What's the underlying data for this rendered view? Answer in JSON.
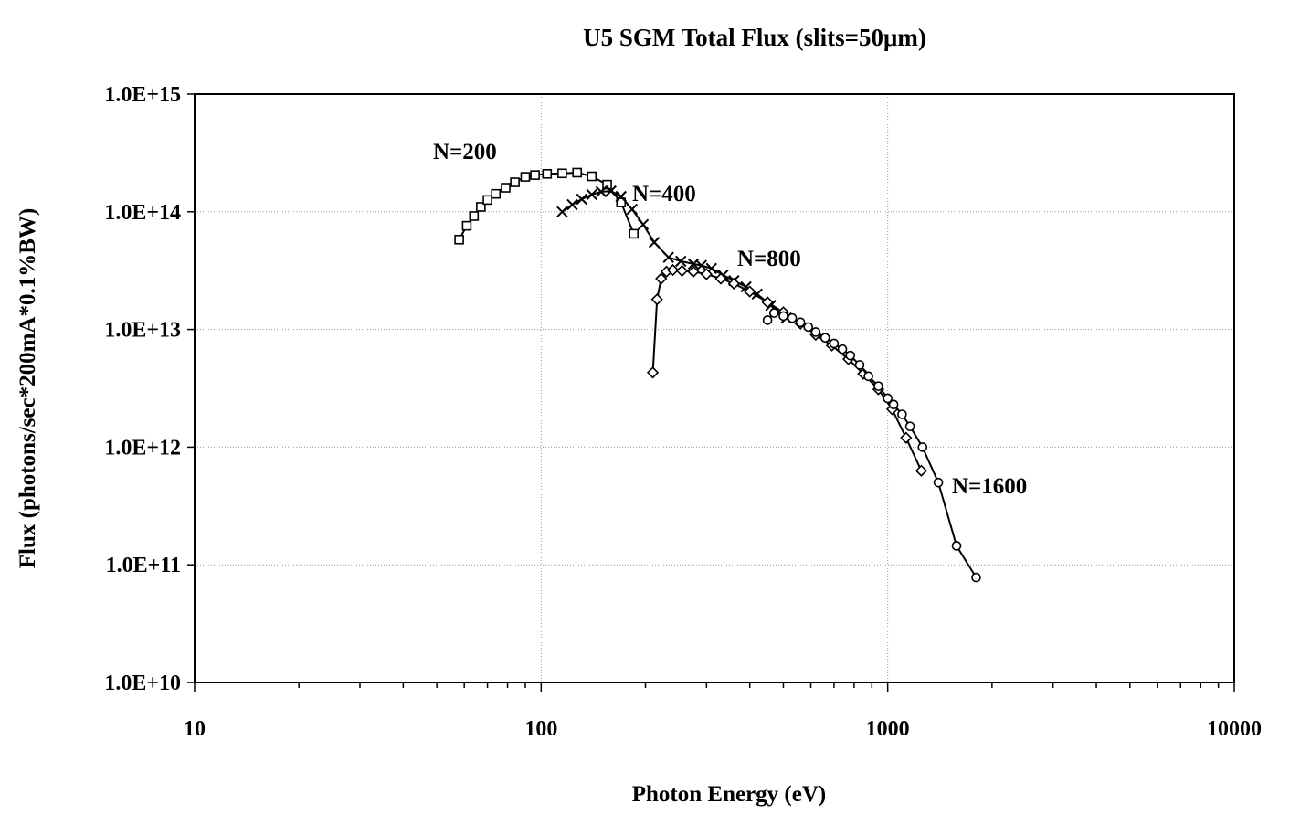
{
  "chart_data": {
    "type": "line",
    "title": "U5 SGM Total Flux (slits=50μm)",
    "xlabel": "Photon Energy (eV)",
    "ylabel": "Flux (photons/sec*200mA*0.1%BW)",
    "x_scale": "log",
    "y_scale": "log",
    "xlim": [
      10,
      10000
    ],
    "ylim": [
      10000000000.0,
      1000000000000000.0
    ],
    "x_ticks": [
      10,
      100,
      1000,
      10000
    ],
    "x_tick_labels": [
      "10",
      "100",
      "1000",
      "10000"
    ],
    "y_ticks": [
      10000000000.0,
      100000000000.0,
      1000000000000.0,
      10000000000000.0,
      100000000000000.0,
      1000000000000000.0
    ],
    "y_tick_labels": [
      "1.0E+10",
      "1.0E+11",
      "1.0E+12",
      "1.0E+13",
      "1.0E+14",
      "1.0E+15"
    ],
    "grid": true,
    "legend": "none",
    "series": [
      {
        "name": "N=200",
        "marker": "square",
        "x": [
          58,
          61,
          64,
          67,
          70,
          74,
          79,
          84,
          90,
          96,
          104,
          115,
          127,
          140,
          155,
          170,
          185
        ],
        "y": [
          58000000000000.0,
          76000000000000.0,
          92000000000000.0,
          110000000000000.0,
          126000000000000.0,
          142000000000000.0,
          160000000000000.0,
          178000000000000.0,
          198000000000000.0,
          205000000000000.0,
          210000000000000.0,
          212000000000000.0,
          215000000000000.0,
          200000000000000.0,
          170000000000000.0,
          120000000000000.0,
          65000000000000.0
        ]
      },
      {
        "name": "N=400",
        "marker": "x",
        "x": [
          115,
          123,
          131,
          140,
          149,
          159,
          170,
          183,
          197,
          212,
          233,
          253,
          275,
          290,
          310,
          335,
          360,
          390,
          420,
          460,
          510
        ],
        "y": [
          100000000000000.0,
          115000000000000.0,
          128000000000000.0,
          140000000000000.0,
          148000000000000.0,
          150000000000000.0,
          135000000000000.0,
          105000000000000.0,
          78000000000000.0,
          55000000000000.0,
          41000000000000.0,
          38000000000000.0,
          36000000000000.0,
          35000000000000.0,
          33000000000000.0,
          29000000000000.0,
          26000000000000.0,
          23000000000000.0,
          20000000000000.0,
          16000000000000.0,
          12500000000000.0
        ]
      },
      {
        "name": "N=800",
        "marker": "diamond",
        "x": [
          210,
          216,
          222,
          230,
          240,
          255,
          275,
          300,
          330,
          360,
          400,
          450,
          500,
          560,
          620,
          690,
          770,
          850,
          940,
          1030,
          1130,
          1250
        ],
        "y": [
          4300000000000.0,
          18000000000000.0,
          27000000000000.0,
          31000000000000.0,
          32000000000000.0,
          31500000000000.0,
          31000000000000.0,
          29500000000000.0,
          27000000000000.0,
          24500000000000.0,
          21000000000000.0,
          17000000000000.0,
          14000000000000.0,
          11200000000000.0,
          9000000000000.0,
          7300000000000.0,
          5600000000000.0,
          4200000000000.0,
          3100000000000.0,
          2100000000000.0,
          1200000000000.0,
          630000000000.0
        ]
      },
      {
        "name": "N=1600",
        "marker": "circle",
        "x": [
          450,
          470,
          500,
          530,
          560,
          590,
          620,
          660,
          700,
          740,
          780,
          830,
          880,
          940,
          1000,
          1040,
          1100,
          1160,
          1260,
          1400,
          1580,
          1800
        ],
        "y": [
          12000000000000.0,
          13800000000000.0,
          13000000000000.0,
          12500000000000.0,
          11500000000000.0,
          10500000000000.0,
          9500000000000.0,
          8500000000000.0,
          7600000000000.0,
          6800000000000.0,
          6000000000000.0,
          5000000000000.0,
          4000000000000.0,
          3300000000000.0,
          2600000000000.0,
          2300000000000.0,
          1900000000000.0,
          1500000000000.0,
          1000000000000.0,
          500000000000.0,
          145000000000.0,
          78000000000.0
        ]
      }
    ],
    "annotations": [
      {
        "text": "N=200",
        "series": "N=200"
      },
      {
        "text": "N=400",
        "series": "N=400"
      },
      {
        "text": "N=800",
        "series": "N=800"
      },
      {
        "text": "N=1600",
        "series": "N=1600"
      }
    ]
  }
}
